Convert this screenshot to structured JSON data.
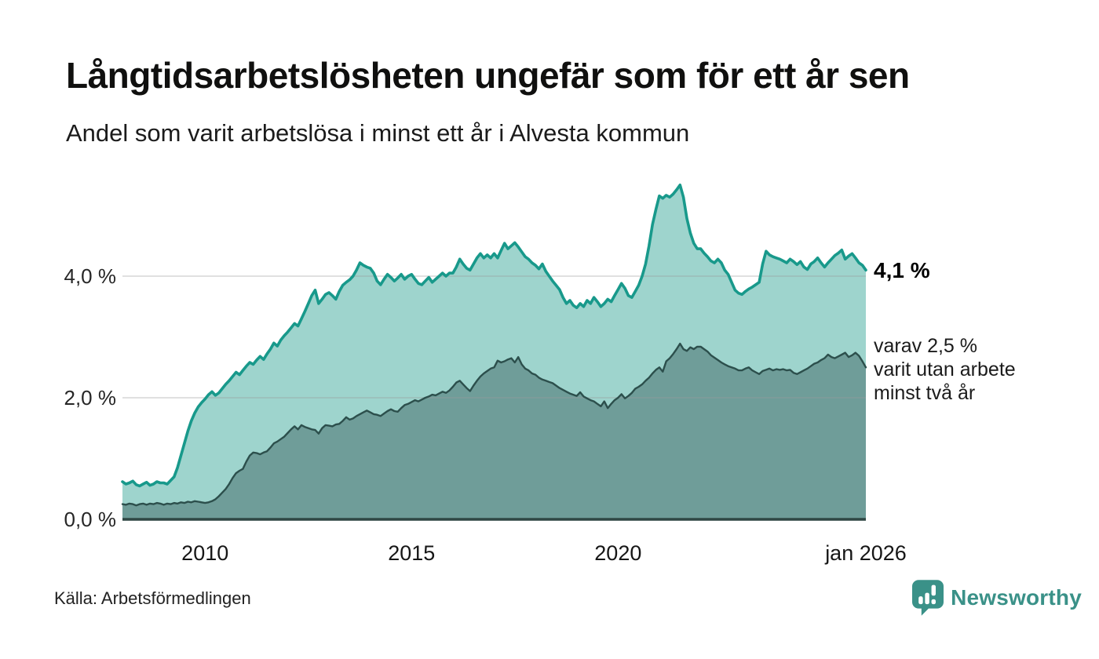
{
  "header": {
    "title": "Långtidsarbetslösheten ungefär som för ett år sen",
    "subtitle": "Andel som varit arbetslösa i minst ett år i Alvesta kommun"
  },
  "annotations": {
    "primary_value": "4,1 %",
    "secondary_line1": "varav 2,5 %",
    "secondary_line2": "varit utan arbete",
    "secondary_line3": "minst två år"
  },
  "footer": {
    "source": "Källa: Arbetsförmedlingen",
    "brand": "Newsworthy"
  },
  "colors": {
    "series1_line": "#18998b",
    "series1_fill": "#9ed4cd",
    "series2_line": "#2c4f4c",
    "series2_fill": "#6f9d99",
    "baseline": "#2f4744",
    "gridline": "#9b9b9b",
    "brand_teal": "#3a9188"
  },
  "chart_data": {
    "type": "area",
    "title": "Långtidsarbetslösheten ungefär som för ett år sen",
    "subtitle": "Andel som varit arbetslösa i minst ett år i Alvesta kommun",
    "unit": "%",
    "x_start_year": 2008,
    "x_end_label_year": 2026,
    "points_per_year": 12,
    "ylim": [
      0,
      5.8
    ],
    "grid": "horizontal",
    "x_axis_ticks": [
      {
        "label": "2010",
        "year": 2010
      },
      {
        "label": "2015",
        "year": 2015
      },
      {
        "label": "2020",
        "year": 2020
      },
      {
        "label": "jan 2026",
        "year": 2026
      }
    ],
    "y_axis_ticks": [
      {
        "label": "0,0 %",
        "value": 0
      },
      {
        "label": "2,0 %",
        "value": 2
      },
      {
        "label": "4,0 %",
        "value": 4
      }
    ],
    "series": [
      {
        "name": "Andel arbetslösa minst ett år",
        "end_value": 4.1,
        "end_label": "4,1 %",
        "values": [
          0.62,
          0.58,
          0.6,
          0.63,
          0.57,
          0.55,
          0.58,
          0.61,
          0.56,
          0.58,
          0.62,
          0.6,
          0.6,
          0.58,
          0.64,
          0.7,
          0.85,
          1.05,
          1.25,
          1.45,
          1.62,
          1.75,
          1.85,
          1.92,
          1.98,
          2.05,
          2.1,
          2.04,
          2.08,
          2.15,
          2.22,
          2.28,
          2.35,
          2.42,
          2.38,
          2.45,
          2.52,
          2.58,
          2.55,
          2.62,
          2.68,
          2.63,
          2.72,
          2.8,
          2.9,
          2.85,
          2.95,
          3.02,
          3.08,
          3.15,
          3.22,
          3.18,
          3.3,
          3.42,
          3.55,
          3.68,
          3.77,
          3.55,
          3.62,
          3.7,
          3.73,
          3.68,
          3.62,
          3.75,
          3.85,
          3.9,
          3.94,
          4.0,
          4.1,
          4.22,
          4.18,
          4.15,
          4.13,
          4.05,
          3.92,
          3.86,
          3.95,
          4.03,
          3.98,
          3.92,
          3.97,
          4.03,
          3.95,
          4.0,
          4.03,
          3.95,
          3.88,
          3.86,
          3.92,
          3.98,
          3.9,
          3.95,
          4.0,
          4.05,
          4.0,
          4.05,
          4.05,
          4.15,
          4.28,
          4.2,
          4.13,
          4.1,
          4.2,
          4.3,
          4.37,
          4.3,
          4.35,
          4.3,
          4.37,
          4.3,
          4.42,
          4.54,
          4.45,
          4.5,
          4.55,
          4.48,
          4.4,
          4.32,
          4.28,
          4.22,
          4.18,
          4.12,
          4.2,
          4.08,
          4.0,
          3.92,
          3.85,
          3.78,
          3.65,
          3.55,
          3.6,
          3.52,
          3.48,
          3.55,
          3.5,
          3.6,
          3.55,
          3.65,
          3.58,
          3.5,
          3.55,
          3.62,
          3.58,
          3.68,
          3.78,
          3.88,
          3.8,
          3.68,
          3.65,
          3.75,
          3.85,
          4.0,
          4.2,
          4.5,
          4.85,
          5.1,
          5.32,
          5.28,
          5.33,
          5.3,
          5.35,
          5.42,
          5.5,
          5.3,
          4.95,
          4.71,
          4.54,
          4.45,
          4.45,
          4.38,
          4.32,
          4.25,
          4.22,
          4.28,
          4.22,
          4.1,
          4.03,
          3.9,
          3.77,
          3.72,
          3.7,
          3.75,
          3.79,
          3.82,
          3.86,
          3.9,
          4.2,
          4.41,
          4.35,
          4.32,
          4.3,
          4.28,
          4.25,
          4.22,
          4.28,
          4.24,
          4.19,
          4.24,
          4.15,
          4.11,
          4.2,
          4.24,
          4.3,
          4.22,
          4.15,
          4.22,
          4.28,
          4.34,
          4.38,
          4.43,
          4.28,
          4.33,
          4.37,
          4.3,
          4.22,
          4.18,
          4.1
        ]
      },
      {
        "name": "varav utan arbete minst två år",
        "end_value": 2.5,
        "values": [
          0.25,
          0.24,
          0.26,
          0.25,
          0.23,
          0.25,
          0.26,
          0.24,
          0.26,
          0.25,
          0.27,
          0.26,
          0.24,
          0.26,
          0.25,
          0.27,
          0.26,
          0.28,
          0.27,
          0.29,
          0.28,
          0.3,
          0.29,
          0.28,
          0.27,
          0.28,
          0.3,
          0.33,
          0.38,
          0.44,
          0.5,
          0.58,
          0.68,
          0.76,
          0.8,
          0.83,
          0.95,
          1.05,
          1.1,
          1.09,
          1.07,
          1.1,
          1.12,
          1.18,
          1.25,
          1.28,
          1.32,
          1.36,
          1.42,
          1.48,
          1.53,
          1.48,
          1.55,
          1.52,
          1.5,
          1.48,
          1.47,
          1.41,
          1.5,
          1.55,
          1.54,
          1.53,
          1.56,
          1.57,
          1.62,
          1.68,
          1.64,
          1.66,
          1.7,
          1.73,
          1.76,
          1.79,
          1.76,
          1.73,
          1.72,
          1.7,
          1.74,
          1.78,
          1.81,
          1.78,
          1.77,
          1.83,
          1.88,
          1.9,
          1.93,
          1.96,
          1.94,
          1.97,
          2.0,
          2.02,
          2.05,
          2.04,
          2.07,
          2.1,
          2.08,
          2.12,
          2.18,
          2.25,
          2.28,
          2.22,
          2.16,
          2.11,
          2.2,
          2.28,
          2.35,
          2.4,
          2.44,
          2.48,
          2.5,
          2.61,
          2.58,
          2.6,
          2.63,
          2.65,
          2.58,
          2.67,
          2.55,
          2.48,
          2.45,
          2.4,
          2.38,
          2.33,
          2.3,
          2.28,
          2.26,
          2.24,
          2.2,
          2.16,
          2.13,
          2.1,
          2.07,
          2.05,
          2.03,
          2.09,
          2.02,
          1.99,
          1.96,
          1.94,
          1.9,
          1.86,
          1.94,
          1.83,
          1.9,
          1.96,
          2.0,
          2.06,
          1.99,
          2.03,
          2.08,
          2.15,
          2.18,
          2.22,
          2.28,
          2.33,
          2.4,
          2.46,
          2.5,
          2.43,
          2.6,
          2.65,
          2.72,
          2.8,
          2.89,
          2.8,
          2.77,
          2.83,
          2.8,
          2.84,
          2.84,
          2.8,
          2.76,
          2.7,
          2.66,
          2.62,
          2.58,
          2.55,
          2.52,
          2.5,
          2.48,
          2.45,
          2.45,
          2.48,
          2.5,
          2.45,
          2.42,
          2.39,
          2.44,
          2.46,
          2.48,
          2.45,
          2.47,
          2.46,
          2.47,
          2.45,
          2.46,
          2.41,
          2.39,
          2.42,
          2.45,
          2.48,
          2.52,
          2.56,
          2.58,
          2.62,
          2.65,
          2.71,
          2.67,
          2.65,
          2.68,
          2.71,
          2.74,
          2.67,
          2.7,
          2.74,
          2.69,
          2.6,
          2.5
        ]
      }
    ]
  }
}
